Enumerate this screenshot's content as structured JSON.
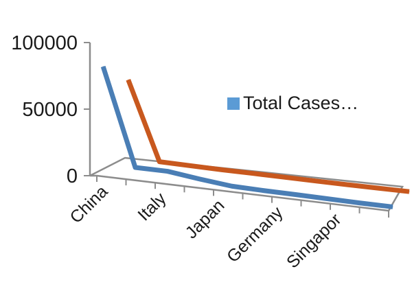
{
  "chart_data": {
    "type": "line",
    "title": "",
    "xlabel": "",
    "ylabel": "",
    "ylim": [
      0,
      100000
    ],
    "y_ticks": [
      "100000",
      "50000",
      "0"
    ],
    "tick_values": [
      100000,
      50000,
      0
    ],
    "categories": [
      "China",
      "",
      "Italy",
      "",
      "Japan",
      "",
      "Germany",
      "",
      "Singapor",
      ""
    ],
    "category_labels": [
      "China",
      "Italy",
      "Japan",
      "Germany",
      "Singapor"
    ],
    "grid": false,
    "legend": {
      "position": "right",
      "label": "Total Cases…"
    },
    "series": [
      {
        "name": "Total Cases…",
        "color": "#4a7eb5",
        "values": [
          80000,
          7000,
          7000,
          4000,
          1500,
          1000,
          800,
          500,
          200,
          150
        ]
      },
      {
        "name": "",
        "color": "#c8581e",
        "values": [
          62000,
          3000,
          2500,
          2000,
          1800,
          1500,
          1200,
          1000,
          900,
          800
        ]
      }
    ]
  }
}
